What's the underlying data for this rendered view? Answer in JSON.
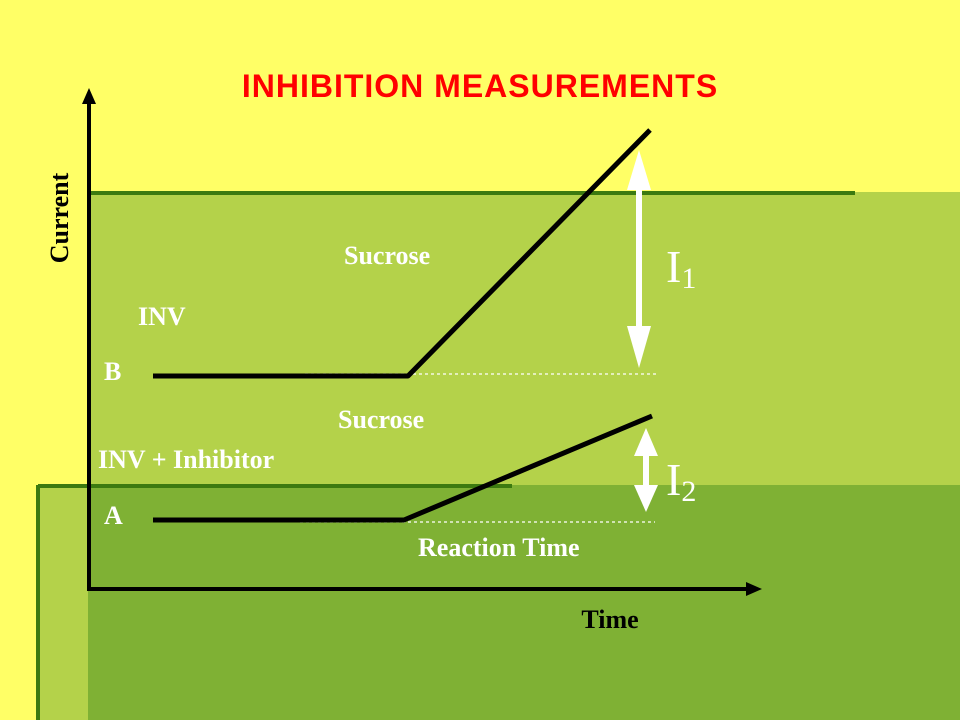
{
  "title": "INHIBITION MEASUREMENTS",
  "axes": {
    "y_label": "Current",
    "x_label": "Time"
  },
  "curve_b": {
    "marker": "B",
    "enzyme_label": "INV",
    "substrate_label": "Sucrose"
  },
  "curve_a": {
    "marker": "A",
    "enzyme_label": "INV + Inhibitor",
    "substrate_label": "Sucrose"
  },
  "reaction_time_label": "Reaction Time",
  "delta_1": {
    "letter": "I",
    "sub": "1"
  },
  "delta_2": {
    "letter": "I",
    "sub": "2"
  },
  "colors": {
    "background_top": "#ffff66",
    "band_mid": "#b4d24a",
    "band_dark": "#7fb134",
    "band_line": "#3c7a10",
    "title": "#ff0000",
    "curve": "#000000",
    "label": "#ffffff"
  }
}
